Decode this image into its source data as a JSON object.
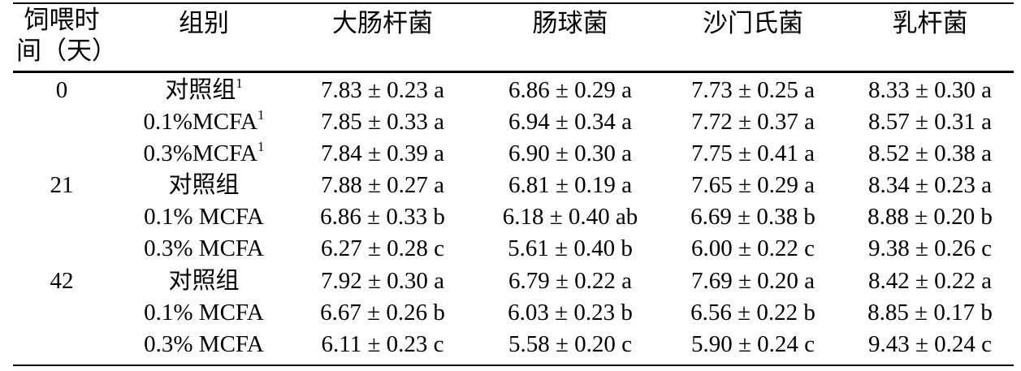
{
  "header": {
    "col0_line1": "饲喂时",
    "col0_line2": "间（天）",
    "col1": "组别",
    "col2": "大肠杆菌",
    "col3": "肠球菌",
    "col4": "沙门氏菌",
    "col5": "乳杆菌"
  },
  "rows": [
    {
      "day": "0",
      "group": "对照组",
      "note": "1",
      "v1": "7.83 ± 0.23 a",
      "v2": "6.86 ± 0.29 a",
      "v3": "7.73 ± 0.25 a",
      "v4": "8.33 ± 0.30 a"
    },
    {
      "day": "",
      "group": "0.1%MCFA",
      "note": "1",
      "v1": "7.85 ± 0.33 a",
      "v2": "6.94 ± 0.34 a",
      "v3": "7.72 ± 0.37 a",
      "v4": "8.57 ± 0.31 a"
    },
    {
      "day": "",
      "group": "0.3%MCFA",
      "note": "1",
      "v1": "7.84 ± 0.39 a",
      "v2": "6.90 ± 0.30 a",
      "v3": "7.75 ± 0.41 a",
      "v4": "8.52 ± 0.38 a"
    },
    {
      "day": "21",
      "group": "对照组",
      "note": "",
      "v1": "7.88 ± 0.27 a",
      "v2": "6.81 ± 0.19 a",
      "v3": "7.65 ± 0.29 a",
      "v4": "8.34 ± 0.23 a"
    },
    {
      "day": "",
      "group": "0.1% MCFA",
      "note": "",
      "v1": "6.86 ± 0.33 b",
      "v2": "6.18 ± 0.40 ab",
      "v3": "6.69 ± 0.38 b",
      "v4": "8.88 ± 0.20 b"
    },
    {
      "day": "",
      "group": "0.3% MCFA",
      "note": "",
      "v1": "6.27 ± 0.28 c",
      "v2": "5.61 ± 0.40 b",
      "v3": "6.00 ± 0.22 c",
      "v4": "9.38 ± 0.26 c"
    },
    {
      "day": "42",
      "group": "对照组",
      "note": "",
      "v1": "7.92 ± 0.30 a",
      "v2": "6.79 ± 0.22 a",
      "v3": "7.69 ± 0.20 a",
      "v4": "8.42 ± 0.22 a"
    },
    {
      "day": "",
      "group": "0.1% MCFA",
      "note": "",
      "v1": "6.67 ± 0.26 b",
      "v2": "6.03 ± 0.23 b",
      "v3": "6.56 ± 0.22 b",
      "v4": "8.85 ± 0.17 b"
    },
    {
      "day": "",
      "group": "0.3% MCFA",
      "note": "",
      "v1": "6.11 ± 0.23 c",
      "v2": "5.58 ± 0.20 c",
      "v3": "5.90 ± 0.24 c",
      "v4": "9.43 ± 0.24 c"
    }
  ]
}
